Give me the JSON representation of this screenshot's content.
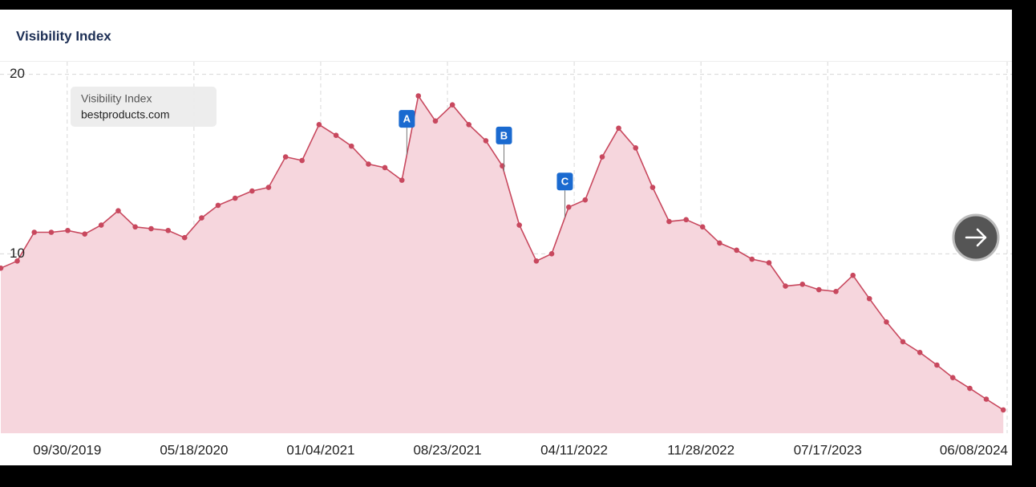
{
  "chart_data": {
    "type": "area",
    "title": "Visibility Index",
    "legend_title": "Visibility Index",
    "series": [
      {
        "name": "bestproducts.com",
        "color": "#c8485e",
        "fill": "#f6d6dd",
        "values": [
          9.2,
          9.6,
          11.2,
          11.2,
          11.3,
          11.1,
          11.6,
          12.4,
          11.5,
          11.4,
          11.3,
          10.9,
          12.0,
          12.7,
          13.1,
          13.5,
          13.7,
          15.4,
          15.2,
          17.2,
          16.6,
          16.0,
          15.0,
          14.8,
          14.1,
          18.8,
          17.4,
          18.3,
          17.2,
          16.3,
          14.9,
          11.6,
          9.6,
          10.0,
          12.6,
          13.0,
          15.4,
          17.0,
          15.9,
          13.7,
          11.8,
          11.9,
          11.5,
          10.6,
          10.2,
          9.7,
          9.5,
          8.2,
          8.3,
          8.0,
          7.9,
          8.8,
          7.5,
          6.2,
          5.1,
          4.5,
          3.8,
          3.1,
          2.5,
          1.9,
          1.3
        ]
      }
    ],
    "x": [
      "06/01/2019",
      "07/01/2019",
      "08/01/2019",
      "09/01/2019",
      "10/01/2019",
      "11/01/2019",
      "12/01/2019",
      "01/01/2020",
      "02/01/2020",
      "03/01/2020",
      "04/01/2020",
      "05/01/2020",
      "06/01/2020",
      "07/01/2020",
      "08/01/2020",
      "09/01/2020",
      "10/01/2020",
      "11/01/2020",
      "12/01/2020",
      "01/01/2021",
      "02/01/2021",
      "03/01/2021",
      "04/01/2021",
      "05/01/2021",
      "06/01/2021",
      "07/01/2021",
      "08/01/2021",
      "09/01/2021",
      "10/01/2021",
      "11/01/2021",
      "12/01/2021",
      "01/01/2022",
      "02/01/2022",
      "03/01/2022",
      "04/01/2022",
      "05/01/2022",
      "06/01/2022",
      "07/01/2022",
      "08/01/2022",
      "09/01/2022",
      "10/01/2022",
      "11/01/2022",
      "12/01/2022",
      "01/01/2023",
      "02/01/2023",
      "03/01/2023",
      "04/01/2023",
      "05/01/2023",
      "06/01/2023",
      "07/01/2023",
      "08/01/2023",
      "09/01/2023",
      "10/01/2023",
      "11/01/2023",
      "12/01/2023",
      "01/01/2024",
      "02/01/2024",
      "03/01/2024",
      "04/01/2024",
      "05/01/2024",
      "06/01/2024"
    ],
    "xlim": [
      "06/01/2019",
      "06/08/2024"
    ],
    "xticks": [
      "09/30/2019",
      "05/18/2020",
      "01/04/2021",
      "08/23/2021",
      "04/11/2022",
      "11/28/2022",
      "07/17/2023",
      "06/08/2024"
    ],
    "ylim": [
      0,
      20.7
    ],
    "yticks": [
      10,
      20
    ],
    "grid": true,
    "annotations": [
      {
        "label": "A",
        "x": "06/10/2021"
      },
      {
        "label": "B",
        "x": "12/04/2021"
      },
      {
        "label": "C",
        "x": "03/25/2022"
      }
    ]
  }
}
